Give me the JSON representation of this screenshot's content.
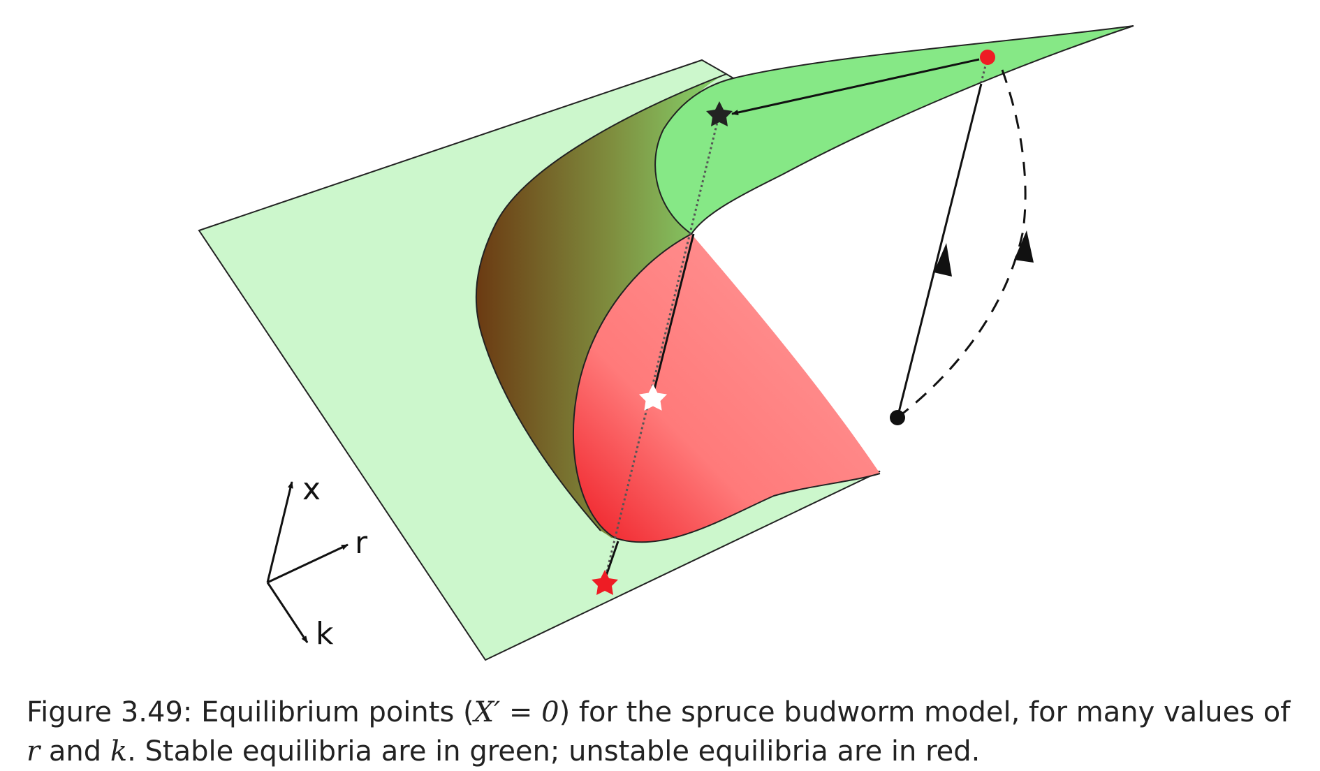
{
  "axes": {
    "x": "x",
    "r": "r",
    "k": "k"
  },
  "caption": {
    "figure_label": "Figure 3.49:",
    "text_1": " Equilibrium points (",
    "math": "X′ = 0",
    "text_2": ") for the spruce budworm model, for many values of ",
    "r_var": "r",
    "text_3": " and ",
    "k_var": "k",
    "text_4": ". Stable equilibria are in green; unstable equilibria are in red."
  },
  "colors": {
    "stable_surface": "#ccf7cc",
    "stable_upper_surface": "#86e886",
    "unstable_surface": "#ff8c8c",
    "fold_shade": "#6e5a2a",
    "stable_marker": "#222222",
    "unstable_marker": "#ee1c24",
    "middle_marker": "#ffffff"
  },
  "markers": [
    {
      "name": "upper stable equilibrium",
      "shape": "star",
      "color": "black"
    },
    {
      "name": "unstable equilibrium",
      "shape": "star",
      "color": "white"
    },
    {
      "name": "lower stable equilibrium",
      "shape": "star",
      "color": "red"
    },
    {
      "name": "upper sheet start point",
      "shape": "dot",
      "color": "red"
    },
    {
      "name": "projected point",
      "shape": "dot",
      "color": "black"
    }
  ]
}
